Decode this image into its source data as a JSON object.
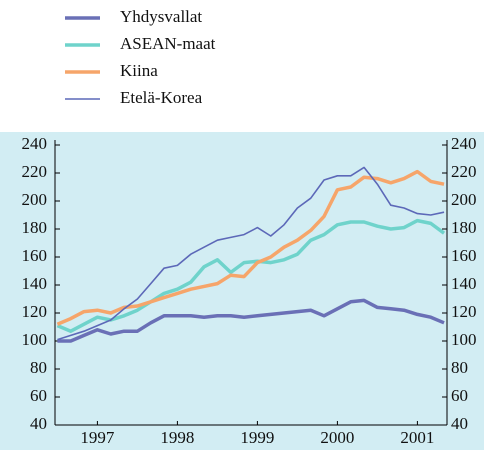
{
  "chart_data": {
    "type": "line",
    "x": [
      1997,
      1997.167,
      1997.333,
      1997.5,
      1997.667,
      1997.833,
      1998,
      1998.167,
      1998.333,
      1998.5,
      1998.667,
      1998.833,
      1999,
      1999.167,
      1999.333,
      1999.5,
      1999.667,
      1999.833,
      2000,
      2000.167,
      2000.333,
      2000.5,
      2000.667,
      2000.833,
      2001,
      2001.167,
      2001.333,
      2001.5,
      2001.667,
      2001.833
    ],
    "series": [
      {
        "name": "Yhdysvallat",
        "color": "#6a70b6",
        "width": 3.5,
        "values": [
          100,
          100,
          104,
          108,
          105,
          107,
          107,
          113,
          118,
          118,
          118,
          117,
          118,
          118,
          117,
          118,
          119,
          120,
          121,
          122,
          118,
          123,
          128,
          129,
          124,
          123,
          122,
          119,
          117,
          113
        ]
      },
      {
        "name": "ASEAN-maat",
        "color": "#6fd3cb",
        "width": 3.5,
        "values": [
          111,
          107,
          112,
          117,
          115,
          118,
          122,
          128,
          134,
          137,
          142,
          153,
          158,
          149,
          156,
          157,
          156,
          158,
          162,
          172,
          176,
          183,
          185,
          185,
          182,
          180,
          181,
          186,
          184,
          177
        ]
      },
      {
        "name": "Kiina",
        "color": "#f6a56a",
        "width": 3.5,
        "values": [
          112,
          116,
          121,
          122,
          120,
          124,
          125,
          128,
          131,
          134,
          137,
          139,
          141,
          147,
          146,
          156,
          160,
          167,
          172,
          179,
          189,
          208,
          210,
          217,
          216,
          213,
          216,
          221,
          214,
          212
        ]
      },
      {
        "name": "Etelä-Korea",
        "color": "#5c68b8",
        "width": 1.6,
        "values": [
          101,
          104,
          107,
          111,
          115,
          123,
          130,
          141,
          152,
          154,
          162,
          167,
          172,
          174,
          176,
          181,
          175,
          183,
          195,
          202,
          215,
          218,
          218,
          224,
          212,
          197,
          195,
          191,
          190,
          192
        ]
      }
    ],
    "xlim": [
      1996.97,
      2001.87
    ],
    "xticks": [
      {
        "value": 1997.5,
        "label": "1997"
      },
      {
        "value": 1998.5,
        "label": "1998"
      },
      {
        "value": 1999.5,
        "label": "1999"
      },
      {
        "value": 2000.5,
        "label": "2000"
      },
      {
        "value": 2001.5,
        "label": "2001"
      }
    ],
    "ylim": [
      40,
      240
    ],
    "yticks": [
      40,
      60,
      80,
      100,
      120,
      140,
      160,
      180,
      200,
      220,
      240
    ],
    "y2lim": [
      40,
      240
    ],
    "y2ticks": [
      40,
      60,
      80,
      100,
      120,
      140,
      160,
      180,
      200,
      220,
      240
    ],
    "background": "#d2edf3"
  }
}
